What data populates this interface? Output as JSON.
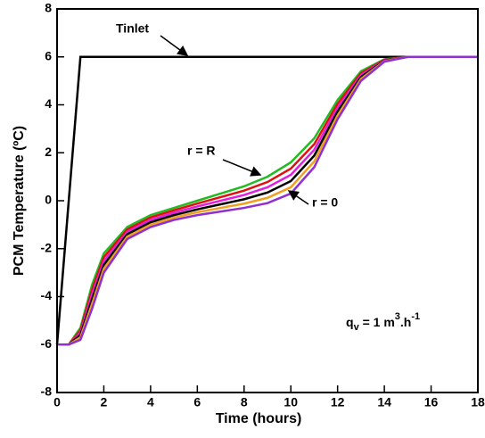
{
  "chart_data": {
    "type": "line",
    "xlabel": "Time (hours)",
    "ylabel": "PCM Temperature (ºC)",
    "xlim": [
      0,
      18
    ],
    "xticks": [
      0,
      2,
      4,
      6,
      8,
      10,
      12,
      14,
      16,
      18
    ],
    "ylim": [
      -8,
      8
    ],
    "yticks": [
      -8,
      -6,
      -4,
      -2,
      0,
      2,
      4,
      6,
      8
    ],
    "series": [
      {
        "name": "Tinlet",
        "color": "#000000",
        "x": [
          0,
          1,
          18
        ],
        "values": [
          -6,
          6,
          6
        ]
      },
      {
        "color": "#22bb22",
        "x": [
          0,
          0.5,
          1,
          1.5,
          2,
          3,
          4,
          5,
          6,
          7,
          8,
          9,
          10,
          11,
          12,
          13,
          14,
          15,
          16,
          17,
          18
        ],
        "values": [
          -6,
          -6,
          -5.3,
          -3.5,
          -2.2,
          -1.1,
          -0.6,
          -0.3,
          0,
          0.3,
          0.6,
          1.0,
          1.6,
          2.6,
          4.2,
          5.4,
          5.9,
          6,
          6,
          6,
          6
        ]
      },
      {
        "color": "#e01010",
        "x": [
          0,
          0.5,
          1,
          1.5,
          2,
          3,
          4,
          5,
          6,
          7,
          8,
          9,
          10,
          11,
          12,
          13,
          14,
          15,
          16,
          17,
          18
        ],
        "values": [
          -6,
          -6,
          -5.4,
          -3.7,
          -2.36,
          -1.2,
          -0.7,
          -0.4,
          -0.12,
          0.15,
          0.42,
          0.78,
          1.34,
          2.36,
          4.04,
          5.32,
          5.88,
          6,
          6,
          6,
          6
        ]
      },
      {
        "color": "#e020e0",
        "x": [
          0,
          0.5,
          1,
          1.5,
          2,
          3,
          4,
          5,
          6,
          7,
          8,
          9,
          10,
          11,
          12,
          13,
          14,
          15,
          16,
          17,
          18
        ],
        "values": [
          -6,
          -6,
          -5.5,
          -3.9,
          -2.52,
          -1.3,
          -0.8,
          -0.5,
          -0.24,
          0,
          0.24,
          0.56,
          1.08,
          2.12,
          3.88,
          5.24,
          5.86,
          6,
          6,
          6,
          6
        ]
      },
      {
        "color": "#000000",
        "x": [
          0,
          0.5,
          1,
          1.5,
          2,
          3,
          4,
          5,
          6,
          7,
          8,
          9,
          10,
          11,
          12,
          13,
          14,
          15,
          16,
          17,
          18
        ],
        "values": [
          -6,
          -6,
          -5.6,
          -4.1,
          -2.68,
          -1.4,
          -0.9,
          -0.6,
          -0.36,
          -0.15,
          0.06,
          0.34,
          0.82,
          1.88,
          3.72,
          5.16,
          5.84,
          6,
          6,
          6,
          6
        ]
      },
      {
        "color": "#f0a020",
        "x": [
          0,
          0.5,
          1,
          1.5,
          2,
          3,
          4,
          5,
          6,
          7,
          8,
          9,
          10,
          11,
          12,
          13,
          14,
          15,
          16,
          17,
          18
        ],
        "values": [
          -6,
          -6,
          -5.7,
          -4.3,
          -2.84,
          -1.5,
          -1.0,
          -0.7,
          -0.48,
          -0.3,
          -0.12,
          0.12,
          0.56,
          1.64,
          3.56,
          5.08,
          5.82,
          6,
          6,
          6,
          6
        ]
      },
      {
        "color": "#9030d0",
        "x": [
          0,
          0.5,
          1,
          1.5,
          2,
          3,
          4,
          5,
          6,
          7,
          8,
          9,
          10,
          11,
          12,
          13,
          14,
          15,
          16,
          17,
          18
        ],
        "values": [
          -6,
          -6,
          -5.8,
          -4.5,
          -3.0,
          -1.6,
          -1.1,
          -0.8,
          -0.6,
          -0.45,
          -0.3,
          -0.1,
          0.3,
          1.4,
          3.4,
          5.0,
          5.8,
          6,
          6,
          6,
          6
        ]
      }
    ],
    "annotations": [
      "r = R",
      "r = 0"
    ],
    "flow_label": [
      "q",
      "v",
      " = 1 m",
      "3",
      ".h",
      "-1"
    ]
  }
}
